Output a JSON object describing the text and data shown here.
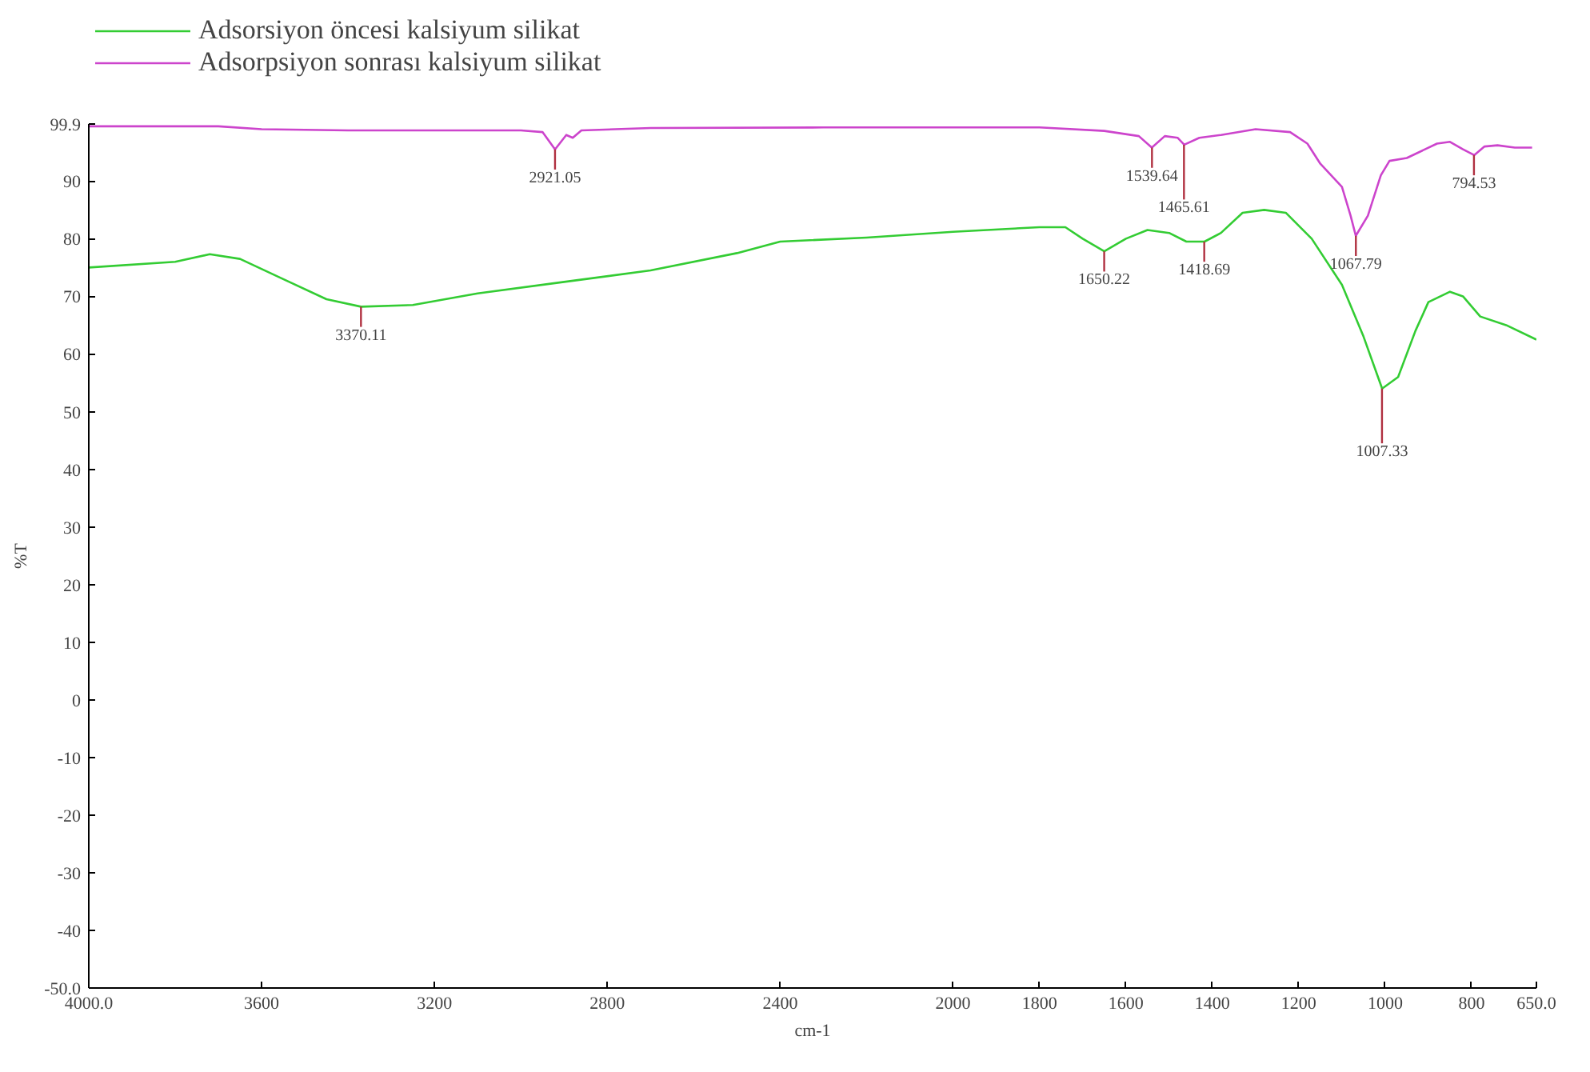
{
  "chart_data": {
    "type": "line",
    "xlabel": "cm-1",
    "ylabel": "%T",
    "xlim": [
      4000.0,
      650.0
    ],
    "xticks": [
      {
        "value": 4000,
        "label": "4000.0"
      },
      3600,
      3200,
      2800,
      2400,
      2000,
      1800,
      1600,
      1400,
      1200,
      1000,
      800,
      {
        "value": 650,
        "label": "650.0"
      }
    ],
    "ylim": [
      -50.0,
      99.9
    ],
    "yticks": [
      {
        "value": -50,
        "label": "-50.0"
      },
      -40,
      -30,
      -20,
      -10,
      0,
      10,
      20,
      30,
      40,
      50,
      60,
      70,
      80,
      90,
      99.9
    ],
    "grid": false,
    "legend": "top left",
    "series": [
      {
        "name": "Adsorsiyon öncesi kalsiyum silikat",
        "color": "#33cc33",
        "x": [
          4000,
          3800,
          3720,
          3650,
          3550,
          3450,
          3370,
          3250,
          3100,
          2900,
          2700,
          2500,
          2400,
          2200,
          2000,
          1800,
          1740,
          1700,
          1650,
          1600,
          1550,
          1500,
          1460,
          1418,
          1380,
          1330,
          1280,
          1230,
          1170,
          1100,
          1050,
          1007,
          970,
          930,
          900,
          850,
          820,
          780,
          720,
          650
        ],
        "values": [
          75,
          76,
          77.3,
          76.5,
          73,
          69.5,
          68.2,
          68.5,
          70.5,
          72.5,
          74.5,
          77.5,
          79.5,
          80.2,
          81.2,
          82,
          82,
          80,
          77.8,
          80,
          81.5,
          81,
          79.5,
          79.5,
          81,
          84.5,
          85,
          84.5,
          80,
          72,
          63,
          54,
          56,
          64,
          69,
          70.8,
          70,
          66.5,
          65,
          62.5
        ]
      },
      {
        "name": "Adsorpsiyon sonrası kalsiyum silikat",
        "color": "#cc44cc",
        "x": [
          4000,
          3700,
          3600,
          3400,
          3000,
          2950,
          2921,
          2895,
          2880,
          2860,
          2700,
          2300,
          2000,
          1800,
          1650,
          1570,
          1540,
          1510,
          1480,
          1465,
          1430,
          1380,
          1300,
          1220,
          1180,
          1150,
          1100,
          1080,
          1068,
          1040,
          1010,
          990,
          950,
          880,
          850,
          820,
          794,
          770,
          740,
          700,
          660
        ],
        "values": [
          99.5,
          99.5,
          99,
          98.8,
          98.8,
          98.5,
          95.5,
          98,
          97.5,
          98.8,
          99.2,
          99.3,
          99.3,
          99.3,
          98.7,
          97.8,
          95.8,
          97.8,
          97.5,
          96.3,
          97.5,
          98,
          99,
          98.5,
          96.5,
          93,
          89,
          84,
          80.5,
          84,
          91,
          93.5,
          94,
          96.5,
          96.8,
          95.5,
          94.5,
          96,
          96.2,
          95.8,
          95.8
        ]
      }
    ],
    "annotations": [
      {
        "text": "3370.11",
        "x": 3370.11,
        "y": 68.2
      },
      {
        "text": "2921.05",
        "x": 2921.05,
        "y": 95.5
      },
      {
        "text": "1650.22",
        "x": 1650.22,
        "y": 77.8
      },
      {
        "text": "1539.64",
        "x": 1539.64,
        "y": 95.8
      },
      {
        "text": "1465.61",
        "x": 1465.61,
        "y": 96.3
      },
      {
        "text": "1418.69",
        "x": 1418.69,
        "y": 79.5
      },
      {
        "text": "1067.79",
        "x": 1067.79,
        "y": 80.5
      },
      {
        "text": "1007.33",
        "x": 1007.33,
        "y": 54
      },
      {
        "text": "794.53",
        "x": 794.53,
        "y": 94.5
      }
    ]
  }
}
